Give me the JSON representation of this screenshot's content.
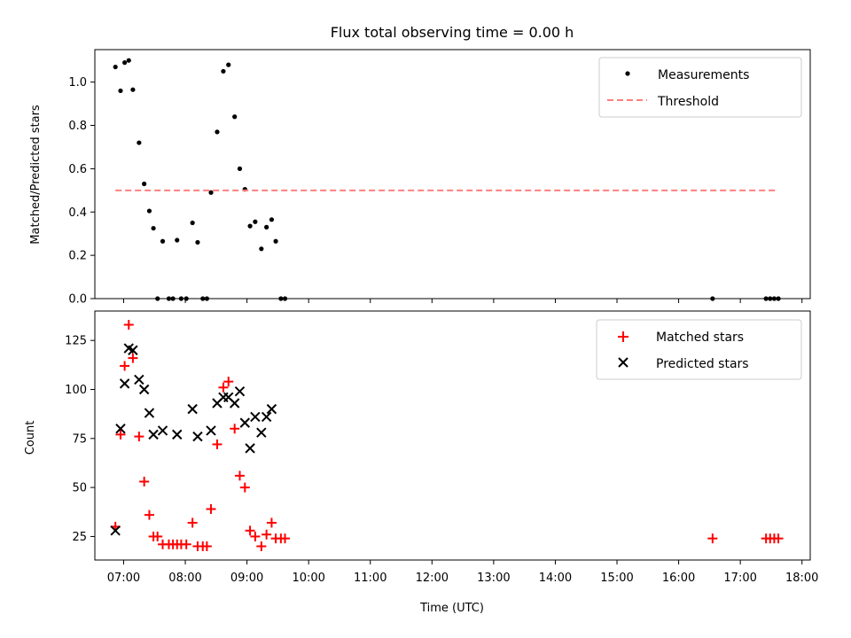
{
  "chart_data": [
    {
      "type": "scatter",
      "title": "Flux total observing time = 0.00 h",
      "ylabel": "Matched/Predicted stars",
      "xlabel": "",
      "xlim": [
        "06:32",
        "18:08"
      ],
      "ylim": [
        0,
        1.15
      ],
      "yticks": [
        "0.0",
        "0.2",
        "0.4",
        "0.6",
        "0.8",
        "1.0"
      ],
      "legend_position": "upper right",
      "series": [
        {
          "name": "Measurements",
          "color": "#000000",
          "marker": "dot",
          "points": [
            [
              "06:52",
              1.07
            ],
            [
              "06:57",
              0.96
            ],
            [
              "07:01",
              1.09
            ],
            [
              "07:05",
              1.1
            ],
            [
              "07:09",
              0.965
            ],
            [
              "07:15",
              0.72
            ],
            [
              "07:20",
              0.53
            ],
            [
              "07:25",
              0.405
            ],
            [
              "07:29",
              0.325
            ],
            [
              "07:33",
              0.0
            ],
            [
              "07:38",
              0.265
            ],
            [
              "07:44",
              0.0
            ],
            [
              "07:48",
              0.0
            ],
            [
              "07:52",
              0.27
            ],
            [
              "07:56",
              0.0
            ],
            [
              "08:01",
              0.0
            ],
            [
              "08:07",
              0.35
            ],
            [
              "08:12",
              0.26
            ],
            [
              "08:17",
              0.0
            ],
            [
              "08:21",
              0.0
            ],
            [
              "08:25",
              0.49
            ],
            [
              "08:31",
              0.77
            ],
            [
              "08:37",
              1.05
            ],
            [
              "08:42",
              1.08
            ],
            [
              "08:48",
              0.84
            ],
            [
              "08:53",
              0.6
            ],
            [
              "08:58",
              0.505
            ],
            [
              "09:03",
              0.335
            ],
            [
              "09:08",
              0.355
            ],
            [
              "09:14",
              0.23
            ],
            [
              "09:19",
              0.33
            ],
            [
              "09:24",
              0.365
            ],
            [
              "09:28",
              0.265
            ],
            [
              "09:33",
              0.0
            ],
            [
              "09:37",
              0.0
            ],
            [
              "16:33",
              0.0
            ],
            [
              "17:25",
              0.0
            ],
            [
              "17:29",
              0.0
            ],
            [
              "17:33",
              0.0
            ],
            [
              "17:37",
              0.0
            ]
          ]
        },
        {
          "name": "Threshold",
          "color": "#ff7f7f",
          "marker": "dashed-line",
          "points": [
            [
              "06:52",
              0.5
            ],
            [
              "17:37",
              0.5
            ]
          ]
        }
      ]
    },
    {
      "type": "scatter",
      "title": "",
      "ylabel": "Count",
      "xlabel": "Time (UTC)",
      "xlim": [
        "06:32",
        "18:08"
      ],
      "ylim": [
        13,
        140
      ],
      "yticks": [
        "25",
        "50",
        "75",
        "100",
        "125"
      ],
      "xticks": [
        "07:00",
        "08:00",
        "09:00",
        "10:00",
        "11:00",
        "12:00",
        "13:00",
        "14:00",
        "15:00",
        "16:00",
        "17:00",
        "18:00"
      ],
      "legend_position": "upper right",
      "series": [
        {
          "name": "Matched stars",
          "color": "#ff0000",
          "marker": "plus",
          "points": [
            [
              "06:52",
              30
            ],
            [
              "06:57",
              77
            ],
            [
              "07:01",
              112
            ],
            [
              "07:05",
              133
            ],
            [
              "07:09",
              116
            ],
            [
              "07:15",
              76
            ],
            [
              "07:20",
              53
            ],
            [
              "07:25",
              36
            ],
            [
              "07:29",
              25
            ],
            [
              "07:33",
              25
            ],
            [
              "07:38",
              21
            ],
            [
              "07:44",
              21
            ],
            [
              "07:48",
              21
            ],
            [
              "07:52",
              21
            ],
            [
              "07:56",
              21
            ],
            [
              "08:01",
              21
            ],
            [
              "08:07",
              32
            ],
            [
              "08:12",
              20
            ],
            [
              "08:17",
              20
            ],
            [
              "08:21",
              20
            ],
            [
              "08:25",
              39
            ],
            [
              "08:31",
              72
            ],
            [
              "08:37",
              101
            ],
            [
              "08:42",
              104
            ],
            [
              "08:48",
              80
            ],
            [
              "08:53",
              56
            ],
            [
              "08:58",
              50
            ],
            [
              "09:03",
              28
            ],
            [
              "09:08",
              25
            ],
            [
              "09:14",
              20
            ],
            [
              "09:19",
              26
            ],
            [
              "09:24",
              32
            ],
            [
              "09:28",
              24
            ],
            [
              "09:33",
              24
            ],
            [
              "09:37",
              24
            ],
            [
              "16:33",
              24
            ],
            [
              "17:25",
              24
            ],
            [
              "17:29",
              24
            ],
            [
              "17:33",
              24
            ],
            [
              "17:37",
              24
            ]
          ]
        },
        {
          "name": "Predicted stars",
          "color": "#000000",
          "marker": "x",
          "points": [
            [
              "06:52",
              28
            ],
            [
              "06:57",
              80
            ],
            [
              "07:01",
              103
            ],
            [
              "07:05",
              121
            ],
            [
              "07:09",
              120
            ],
            [
              "07:15",
              105
            ],
            [
              "07:20",
              100
            ],
            [
              "07:25",
              88
            ],
            [
              "07:29",
              77
            ],
            [
              "07:38",
              79
            ],
            [
              "07:52",
              77
            ],
            [
              "08:07",
              90
            ],
            [
              "08:12",
              76
            ],
            [
              "08:25",
              79
            ],
            [
              "08:31",
              93
            ],
            [
              "08:37",
              96
            ],
            [
              "08:42",
              96
            ],
            [
              "08:48",
              93
            ],
            [
              "08:53",
              99
            ],
            [
              "08:58",
              83
            ],
            [
              "09:03",
              70
            ],
            [
              "09:08",
              86
            ],
            [
              "09:14",
              78
            ],
            [
              "09:19",
              86
            ],
            [
              "09:24",
              90
            ]
          ]
        }
      ]
    }
  ]
}
